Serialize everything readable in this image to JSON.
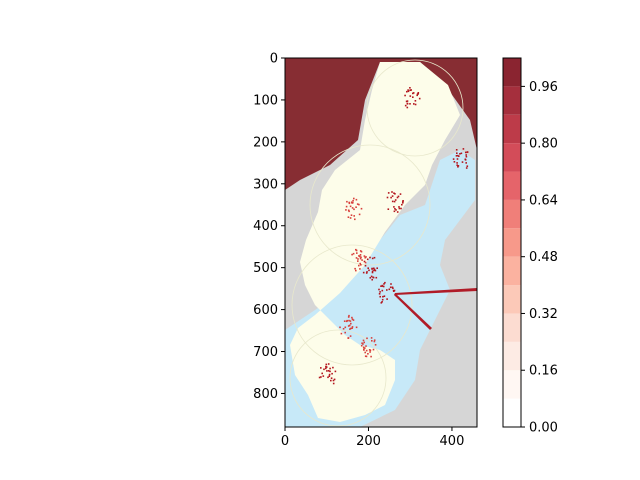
{
  "chart_data": {
    "type": "heatmap",
    "title": "",
    "xlabel": "",
    "ylabel": "",
    "xlim": [
      0,
      460
    ],
    "ylim": [
      880,
      0
    ],
    "x_ticks": [
      "0",
      "200",
      "400"
    ],
    "x_tick_values": [
      0,
      200,
      400
    ],
    "y_ticks": [
      "0",
      "100",
      "200",
      "300",
      "400",
      "500",
      "600",
      "700",
      "800"
    ],
    "y_tick_values": [
      0,
      100,
      200,
      300,
      400,
      500,
      600,
      700,
      800
    ],
    "colorbar": {
      "ticks": [
        "0.00",
        "0.16",
        "0.32",
        "0.48",
        "0.64",
        "0.80",
        "0.96"
      ],
      "tick_values": [
        0.0,
        0.16,
        0.32,
        0.48,
        0.64,
        0.8,
        0.96
      ],
      "levels": [
        0.0,
        0.08,
        0.16,
        0.24,
        0.32,
        0.4,
        0.48,
        0.56,
        0.64,
        0.72,
        0.8,
        0.88,
        0.96,
        1.04
      ],
      "colors": [
        "#ffffff",
        "#fff7f3",
        "#fdebe4",
        "#fcdcd1",
        "#fcc9b8",
        "#fbb2a0",
        "#f7998a",
        "#f07f79",
        "#e5646a",
        "#d34c59",
        "#bd3b49",
        "#a52f3d",
        "#8a2430"
      ],
      "vmin": 0.0,
      "vmax": 1.04
    },
    "map_colors": {
      "background_value_color": "#872d33",
      "land": "#fdfdea",
      "sea": "#c7e9f8",
      "outside_land": "#d6d6d6",
      "hotspot": "#c81e1e"
    },
    "high_value_clusters": [
      {
        "x": 300,
        "y": 95,
        "value": 0.96
      },
      {
        "x": 420,
        "y": 240,
        "value": 0.96
      },
      {
        "x": 260,
        "y": 340,
        "value": 0.96
      },
      {
        "x": 160,
        "y": 360,
        "value": 0.88
      },
      {
        "x": 205,
        "y": 500,
        "value": 0.96
      },
      {
        "x": 240,
        "y": 560,
        "value": 0.96
      },
      {
        "x": 175,
        "y": 480,
        "value": 0.88
      },
      {
        "x": 100,
        "y": 755,
        "value": 0.96
      },
      {
        "x": 150,
        "y": 640,
        "value": 0.8
      },
      {
        "x": 200,
        "y": 690,
        "value": 0.8
      }
    ]
  }
}
